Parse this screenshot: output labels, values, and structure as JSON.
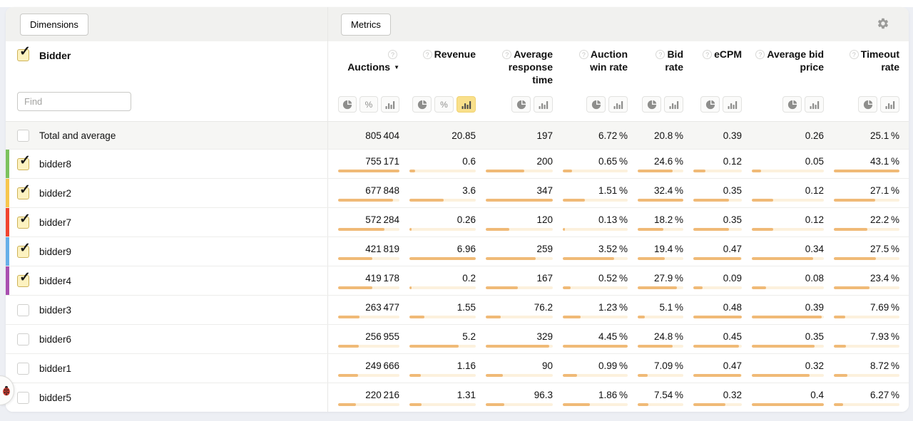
{
  "toolbar": {
    "dimensions_label": "Dimensions",
    "metrics_label": "Metrics"
  },
  "dimension_panel": {
    "title": "Bidder",
    "title_checked": true,
    "find_placeholder": "Find"
  },
  "columns": [
    {
      "label": "Auctions",
      "sort": "desc",
      "toggles": [
        "pie",
        "percent",
        "bars"
      ],
      "active": null
    },
    {
      "label": "Revenue",
      "sort": null,
      "toggles": [
        "pie",
        "percent",
        "bars"
      ],
      "active": "bars"
    },
    {
      "label": "Average response time",
      "sort": null,
      "toggles": [
        "pie",
        "bars"
      ],
      "active": null
    },
    {
      "label": "Auction win rate",
      "sort": null,
      "toggles": [
        "pie",
        "bars"
      ],
      "active": null
    },
    {
      "label": "Bid rate",
      "sort": null,
      "toggles": [
        "pie",
        "bars"
      ],
      "active": null
    },
    {
      "label": "eCPM",
      "sort": null,
      "toggles": [
        "pie",
        "bars"
      ],
      "active": null
    },
    {
      "label": "Average bid price",
      "sort": null,
      "toggles": [
        "pie",
        "bars"
      ],
      "active": null
    },
    {
      "label": "Timeout rate",
      "sort": null,
      "toggles": [
        "pie",
        "bars"
      ],
      "active": null
    }
  ],
  "total_row": {
    "label": "Total and average",
    "checked": false,
    "values": [
      "805 404",
      "20.85",
      "197",
      "6.72 %",
      "20.8 %",
      "0.39",
      "0.26",
      "25.1 %"
    ]
  },
  "rows": [
    {
      "name": "bidder8",
      "checked": true,
      "strip_color": "#7cc25e",
      "values": [
        "755 171",
        "0.6",
        "200",
        "0.65 %",
        "24.6 %",
        "0.12",
        "0.05",
        "43.1 %"
      ]
    },
    {
      "name": "bidder2",
      "checked": true,
      "strip_color": "#f7c64e",
      "values": [
        "677 848",
        "3.6",
        "347",
        "1.51 %",
        "32.4 %",
        "0.35",
        "0.12",
        "27.1 %"
      ]
    },
    {
      "name": "bidder7",
      "checked": true,
      "strip_color": "#f1432f",
      "values": [
        "572 284",
        "0.26",
        "120",
        "0.13 %",
        "18.2 %",
        "0.35",
        "0.12",
        "22.2 %"
      ]
    },
    {
      "name": "bidder9",
      "checked": true,
      "strip_color": "#66afe9",
      "values": [
        "421 819",
        "6.96",
        "259",
        "3.52 %",
        "19.4 %",
        "0.47",
        "0.34",
        "27.5 %"
      ]
    },
    {
      "name": "bidder4",
      "checked": true,
      "strip_color": "#a94fb0",
      "values": [
        "419 178",
        "0.2",
        "167",
        "0.52 %",
        "27.9 %",
        "0.09",
        "0.08",
        "23.4 %"
      ]
    },
    {
      "name": "bidder3",
      "checked": false,
      "strip_color": null,
      "values": [
        "263 477",
        "1.55",
        "76.2",
        "1.23 %",
        "5.1 %",
        "0.48",
        "0.39",
        "7.69 %"
      ]
    },
    {
      "name": "bidder6",
      "checked": false,
      "strip_color": null,
      "values": [
        "256 955",
        "5.2",
        "329",
        "4.45 %",
        "24.8 %",
        "0.45",
        "0.35",
        "7.93 %"
      ]
    },
    {
      "name": "bidder1",
      "checked": false,
      "strip_color": null,
      "values": [
        "249 666",
        "1.16",
        "90",
        "0.99 %",
        "7.09 %",
        "0.47",
        "0.32",
        "8.72 %"
      ]
    },
    {
      "name": "bidder5",
      "checked": false,
      "strip_color": null,
      "values": [
        "220 216",
        "1.31",
        "96.3",
        "1.86 %",
        "7.54 %",
        "0.32",
        "0.4",
        "6.27 %"
      ]
    }
  ],
  "colors": {
    "bar_fill": "#f0ba77",
    "bar_track": "#fcf1dd",
    "active_toggle_bg": "#f9e08b"
  }
}
